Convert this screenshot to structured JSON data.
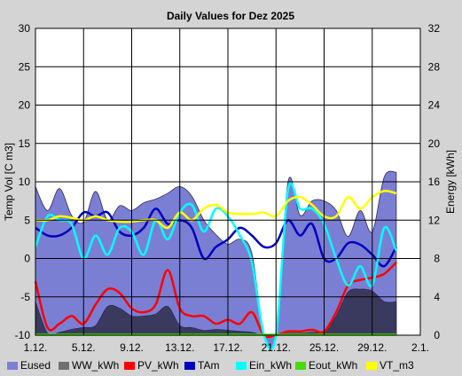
{
  "chart_data": {
    "type": "area",
    "title": "Daily Values for Dez 2025",
    "ylabel_left": "Temp Vol [C m3]",
    "ylabel_right": "Energy [kWh]",
    "ylim_left": [
      -10,
      30
    ],
    "ylim_right": [
      0,
      32
    ],
    "yticks_left": [
      "-10",
      "-5",
      "0",
      "5",
      "10",
      "15",
      "20",
      "25",
      "30"
    ],
    "yticks_right": [
      "0",
      "4",
      "8",
      "12",
      "16",
      "20",
      "24",
      "28",
      "32"
    ],
    "xticks": [
      "1.12.",
      "5.12.",
      "9.12.",
      "13.12.",
      "17.12.",
      "21.12.",
      "25.12.",
      "29.12.",
      "2.1."
    ],
    "x": [
      1,
      2,
      3,
      4,
      5,
      6,
      7,
      8,
      9,
      10,
      11,
      12,
      13,
      14,
      15,
      16,
      17,
      18,
      19,
      20,
      21,
      22,
      23,
      24,
      25,
      26,
      27,
      28,
      29,
      30,
      31
    ],
    "series": [
      {
        "name": "Eused",
        "axis": "right",
        "color": "#7b7fd4",
        "kind": "area",
        "values": [
          15.5,
          13,
          15.3,
          12.5,
          11.8,
          15,
          12,
          13.5,
          13,
          13.8,
          14.2,
          14.8,
          15.5,
          14.5,
          12,
          10.5,
          9.5,
          10,
          8.5,
          0,
          0,
          16,
          12.5,
          14,
          14,
          13,
          10.3,
          13,
          10.8,
          16.5,
          17
        ]
      },
      {
        "name": "WW_kWh",
        "axis": "right",
        "color": "#3a3a5e",
        "kind": "area",
        "values": [
          3.5,
          0.2,
          0.3,
          0.6,
          0.8,
          1,
          3,
          2.8,
          2,
          2,
          2.2,
          3,
          1,
          0.8,
          0.5,
          0.6,
          0.5,
          0.4,
          0.3,
          0,
          0,
          0.2,
          0.2,
          0.3,
          0.4,
          2,
          4.5,
          4.8,
          4.6,
          3.5,
          3.5
        ]
      },
      {
        "name": "PV_kWh",
        "axis": "left",
        "color": "#ff0000",
        "kind": "line",
        "values": [
          -3,
          -9,
          -8.5,
          -7.5,
          -8.5,
          -6,
          -4,
          -4.5,
          -6.5,
          -7,
          -6,
          -1.5,
          -6.5,
          -7.5,
          -7.5,
          -8.5,
          -8,
          -8.5,
          -7,
          -10,
          -10,
          -9.5,
          -9.5,
          -9.3,
          -9.5,
          -7,
          -3.5,
          -2.8,
          -2.5,
          -2,
          -0.5
        ]
      },
      {
        "name": "TAm",
        "axis": "left",
        "color": "#0000c0",
        "kind": "line",
        "values": [
          4,
          3,
          3,
          4,
          6,
          5.5,
          6,
          3.5,
          3,
          4,
          6.5,
          4.5,
          5,
          4,
          0,
          1.5,
          2.5,
          4,
          3,
          1.5,
          2,
          5,
          3,
          4.5,
          0,
          0,
          2,
          1.8,
          0.5,
          -1,
          1.5
        ]
      },
      {
        "name": "Ein_kWh",
        "axis": "left",
        "color": "#00ffff",
        "kind": "line",
        "values": [
          1.5,
          5.5,
          5,
          4.5,
          0,
          3,
          0.5,
          4,
          3.5,
          0.5,
          5,
          2.5,
          6,
          7,
          3.5,
          6.5,
          5.5,
          3,
          -0.5,
          -10,
          -10,
          9,
          6.5,
          6.5,
          4.5,
          0,
          -3.5,
          -1,
          -3.5,
          4,
          1
        ]
      },
      {
        "name": "Eout_kWh",
        "axis": "right",
        "color": "#44dd00",
        "kind": "line",
        "values": [
          0.05,
          0.05,
          0.05,
          0.05,
          0.05,
          0.05,
          0.05,
          0.05,
          0.05,
          0.05,
          0.05,
          0.05,
          0.05,
          0.05,
          0.05,
          0.05,
          0.05,
          0.05,
          0.05,
          0.05,
          0.05,
          0.05,
          0.05,
          0.05,
          0.05,
          0.05,
          0.05,
          0.05,
          0.05,
          0.05,
          0.05
        ]
      },
      {
        "name": "VT_m3",
        "axis": "left",
        "color": "#ffff00",
        "kind": "line",
        "values": [
          5,
          5,
          5.5,
          5.3,
          5,
          5.5,
          5,
          4.8,
          4.8,
          5,
          5,
          4,
          6,
          5,
          6.5,
          7,
          6,
          5.8,
          5.8,
          6,
          5.5,
          7.5,
          8,
          7,
          5.5,
          5.5,
          8,
          6.5,
          8,
          8.8,
          8.5
        ]
      }
    ],
    "grid": true,
    "legend_position": "bottom"
  },
  "legend": {
    "items": [
      {
        "label": "Eused",
        "color": "#7b7fd4"
      },
      {
        "label": "WW_kWh",
        "color": "#707070"
      },
      {
        "label": "PV_kWh",
        "color": "#ff0000"
      },
      {
        "label": "TAm",
        "color": "#0000c0"
      },
      {
        "label": "Ein_kWh",
        "color": "#00ffff"
      },
      {
        "label": "Eout_kWh",
        "color": "#44dd00"
      },
      {
        "label": "VT_m3",
        "color": "#ffff00"
      }
    ]
  }
}
